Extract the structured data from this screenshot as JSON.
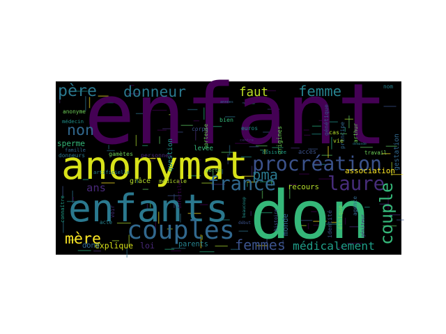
{
  "colors": {
    "page_background": "#ffffff",
    "cloud_background": "#000000"
  },
  "words": [
    {
      "id": "enfant",
      "text": "enfant",
      "color": "#440154"
    },
    {
      "id": "don",
      "text": "don",
      "color": "#35b779"
    },
    {
      "id": "anonymat",
      "text": "anonymat",
      "color": "#d8e219"
    },
    {
      "id": "enfants",
      "text": "enfants",
      "color": "#2a788e"
    },
    {
      "id": "couples",
      "text": "couples",
      "color": "#31688e"
    },
    {
      "id": "procreation",
      "text": "procréation",
      "color": "#3b528b"
    },
    {
      "id": "france",
      "text": "france",
      "color": "#31688e"
    },
    {
      "id": "pere",
      "text": "père",
      "color": "#2a788e"
    },
    {
      "id": "donneur",
      "text": "donneur",
      "color": "#2a788e"
    },
    {
      "id": "faut",
      "text": "faut",
      "color": "#bddf26"
    },
    {
      "id": "femme",
      "text": "femme",
      "color": "#26828e"
    },
    {
      "id": "laure",
      "text": "laure",
      "color": "#472d7b"
    },
    {
      "id": "mere",
      "text": "mère",
      "color": "#fde725"
    },
    {
      "id": "femmes",
      "text": "femmes",
      "color": "#3b528b"
    },
    {
      "id": "medicalement",
      "text": "médicalement",
      "color": "#1f9e89"
    },
    {
      "id": "couple",
      "text": "couple",
      "color": "#35b779"
    },
    {
      "id": "pma",
      "text": "pma",
      "color": "#2a788e"
    },
    {
      "id": "non",
      "text": "non",
      "color": "#31688e"
    },
    {
      "id": "ans",
      "text": "ans",
      "color": "#482878"
    },
    {
      "id": "anonyme",
      "text": "anonyme",
      "color": "#6ece58"
    },
    {
      "id": "medecin",
      "text": "médecin",
      "color": "#21918c"
    },
    {
      "id": "donneurs",
      "text": "donneurs",
      "color": "#2a788e"
    },
    {
      "id": "sperme",
      "text": "sperme",
      "color": "#35b779"
    },
    {
      "id": "famille",
      "text": "famille",
      "color": "#31688e"
    },
    {
      "id": "artificielle",
      "text": "artificielle",
      "color": "#26828e"
    },
    {
      "id": "connaitre",
      "text": "connaître",
      "color": "#1f9e89"
    },
    {
      "id": "gametes",
      "text": "gamètes",
      "color": "#6ece58"
    },
    {
      "id": "personnes",
      "text": "personnes",
      "color": "#482878"
    },
    {
      "id": "question",
      "text": "question",
      "color": "#21918c"
    },
    {
      "id": "corps",
      "text": "corps",
      "color": "#3b528b"
    },
    {
      "id": "porteuse",
      "text": "porteuse",
      "color": "#6ece58"
    },
    {
      "id": "levee",
      "text": "levée",
      "color": "#35b779"
    },
    {
      "id": "bien",
      "text": "bien",
      "color": "#35b779"
    },
    {
      "id": "origines",
      "text": "origines",
      "color": "#6ece58"
    },
    {
      "id": "vie",
      "text": "vie",
      "color": "#b5de2b"
    },
    {
      "id": "cas",
      "text": "cas",
      "color": "#b5de2b"
    },
    {
      "id": "gestation",
      "text": "gestation",
      "color": "#31688e"
    },
    {
      "id": "arthur",
      "text": "arthur",
      "color": "#6ece58"
    },
    {
      "id": "principe",
      "text": "principe",
      "color": "#31688e"
    },
    {
      "id": "association",
      "text": "association",
      "color": "#fde725"
    },
    {
      "id": "medicale",
      "text": "médicale",
      "color": "#b5de2b"
    },
    {
      "id": "grace",
      "text": "grâce",
      "color": "#b5de2b"
    },
    {
      "id": "recours",
      "text": "recours",
      "color": "#b5de2b"
    },
    {
      "id": "acces",
      "text": "accès",
      "color": "#3b528b"
    },
    {
      "id": "assistee",
      "text": "assistée",
      "color": "#1f9e89"
    },
    {
      "id": "explique",
      "text": "explique",
      "color": "#d8e219"
    },
    {
      "id": "loi",
      "text": "loi",
      "color": "#482878"
    },
    {
      "id": "parents",
      "text": "parents",
      "color": "#26828e"
    },
    {
      "id": "dons",
      "text": "dons",
      "color": "#31688e"
    },
    {
      "id": "acte",
      "text": "acte",
      "color": "#26828e"
    },
    {
      "id": "voir",
      "text": "voir",
      "color": "#472d7b"
    },
    {
      "id": "infertiles",
      "text": "infertiles",
      "color": "#440154"
    },
    {
      "id": "monde",
      "text": "monde",
      "color": "#31688e"
    },
    {
      "id": "histoire",
      "text": "histoire",
      "color": "#3b528b"
    },
    {
      "id": "agence",
      "text": "agence",
      "color": "#31688e"
    },
    {
      "id": "ethique",
      "text": "éthique",
      "color": "#6ece58"
    },
    {
      "id": "identite",
      "text": "identité",
      "color": "#3b528b"
    },
    {
      "id": "geniteur",
      "text": "géniteur",
      "color": "#482878"
    },
    {
      "id": "travail",
      "text": "travail",
      "color": "#6ece58"
    },
    {
      "id": "nom",
      "text": "nom",
      "color": "#26828e"
    },
    {
      "id": "euros",
      "text": "euros",
      "color": "#21918c"
    },
    {
      "id": "porte",
      "text": "porte",
      "color": "#6ece58"
    },
    {
      "id": "genetique",
      "text": "génétique",
      "color": "#3b528b"
    },
    {
      "id": "centre",
      "text": "centre",
      "color": "#472d7b"
    },
    {
      "id": "annees",
      "text": "années",
      "color": "#31688e"
    },
    {
      "id": "beaucoup",
      "text": "beaucoup",
      "color": "#21918c"
    },
    {
      "id": "debut",
      "text": "début",
      "color": "#3b528b"
    },
    {
      "id": "demande",
      "text": "demande",
      "color": "#26828e"
    }
  ]
}
